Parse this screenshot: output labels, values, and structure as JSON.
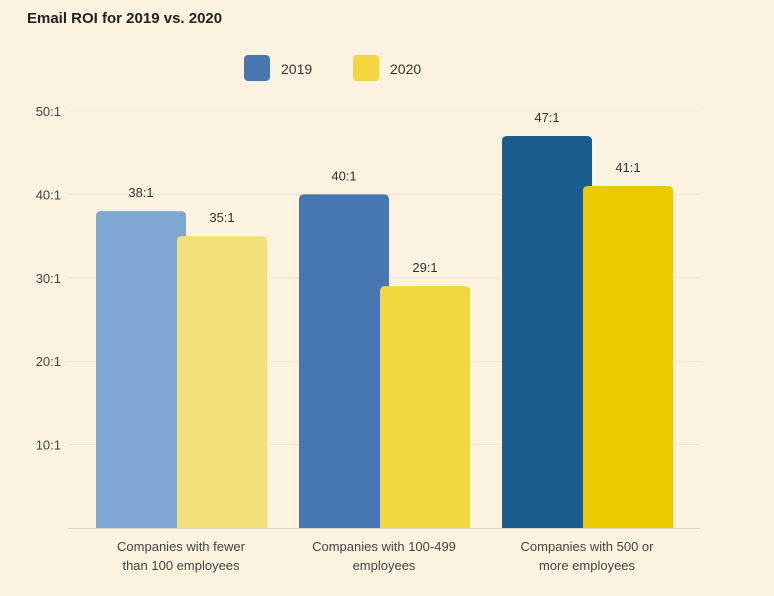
{
  "chart_data": {
    "type": "bar",
    "title": "Email ROI for 2019 vs. 2020",
    "xlabel": "",
    "ylabel": "",
    "ylim": [
      0,
      50
    ],
    "yticks": [
      10,
      20,
      30,
      40,
      50
    ],
    "ytick_labels": [
      "10:1",
      "20:1",
      "30:1",
      "40:1",
      "50:1"
    ],
    "grid": true,
    "legend_position": "top-center",
    "categories": [
      [
        "Companies with fewer",
        "than 100 employees"
      ],
      [
        "Companies with 100-499",
        "employees"
      ],
      [
        "Companies with 500 or",
        "more employees"
      ]
    ],
    "series": [
      {
        "name": "2019",
        "values": [
          38,
          40,
          47
        ],
        "labels": [
          "38:1",
          "40:1",
          "47:1"
        ],
        "colors": [
          "#7ea8d3",
          "#4677b0",
          "#1b5d8f"
        ],
        "legend_color": "#4677b0"
      },
      {
        "name": "2020",
        "values": [
          35,
          29,
          41
        ],
        "labels": [
          "35:1",
          "29:1",
          "41:1"
        ],
        "colors": [
          "#f2e07c",
          "#f2d73f",
          "#ebcb00"
        ],
        "legend_color": "#f2d73f"
      }
    ]
  }
}
